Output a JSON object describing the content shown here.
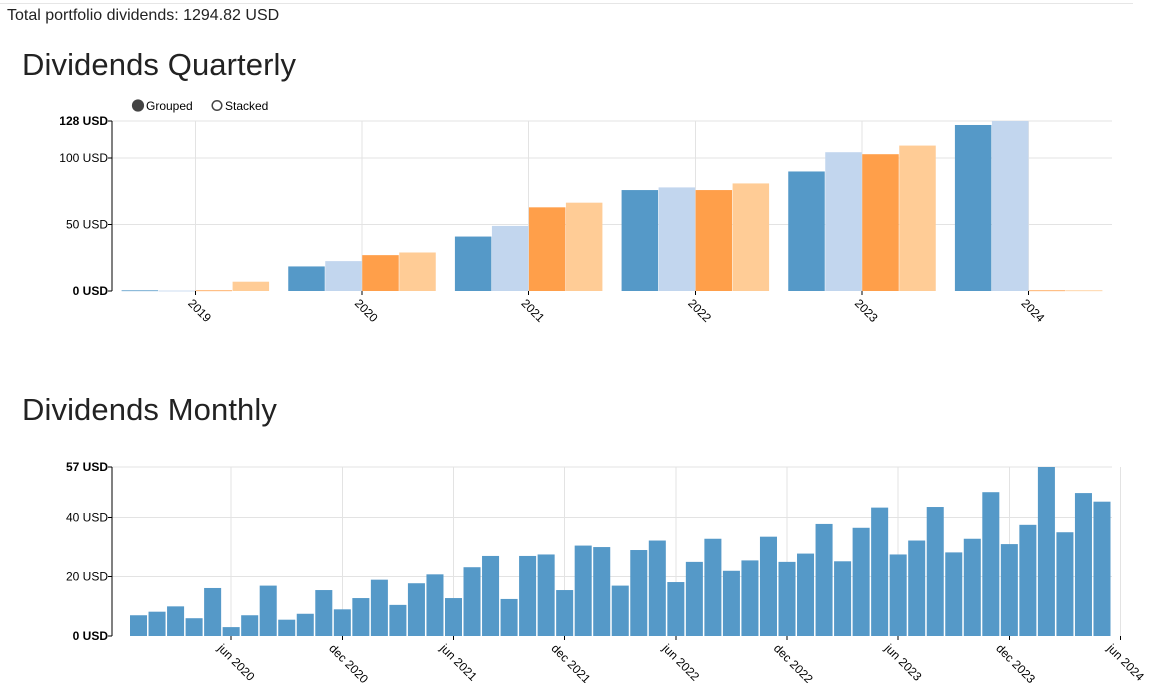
{
  "summary": {
    "total_label": "Total portfolio dividends: 1294.82 USD"
  },
  "quarterly": {
    "title": "Dividends Quarterly",
    "controls": {
      "grouped_label": "Grouped",
      "stacked_label": "Stacked",
      "selected": "grouped"
    }
  },
  "monthly": {
    "title": "Dividends Monthly"
  },
  "chart_data": [
    {
      "type": "bar",
      "mode": "grouped",
      "title": "Dividends Quarterly",
      "categories": [
        "2019",
        "2020",
        "2021",
        "2022",
        "2023",
        "2024"
      ],
      "series": [
        {
          "values": [
            0.5,
            18.5,
            41,
            76,
            90,
            125
          ],
          "color": "#5599c8"
        },
        {
          "values": [
            0.3,
            22.5,
            49,
            78,
            104.5,
            128
          ],
          "color": "#c2d6ee"
        },
        {
          "values": [
            0.5,
            27,
            63,
            76,
            103,
            0.5
          ],
          "color": "#ff9f4a"
        },
        {
          "values": [
            7,
            29,
            66.5,
            81,
            109.5,
            0.5
          ],
          "color": "#ffcc96"
        }
      ],
      "ylim": [
        0,
        128
      ],
      "yticks": [
        {
          "value": 0,
          "label": "0 USD",
          "bold": true
        },
        {
          "value": 50,
          "label": "50 USD",
          "bold": false
        },
        {
          "value": 100,
          "label": "100 USD",
          "bold": false
        },
        {
          "value": 128,
          "label": "128 USD",
          "bold": true
        }
      ],
      "grid": true
    },
    {
      "type": "bar",
      "title": "Dividends Monthly",
      "start_month": "2020-01",
      "values": [
        7,
        8.2,
        10,
        6,
        16.2,
        3,
        7,
        17,
        5.5,
        7.5,
        15.5,
        9,
        12.8,
        19,
        10.5,
        17.8,
        20.8,
        12.8,
        23.2,
        27,
        12.5,
        27,
        27.5,
        15.5,
        30.5,
        30,
        17,
        29,
        32.2,
        18.2,
        25,
        32.8,
        22,
        25.5,
        33.5,
        25,
        27.8,
        37.8,
        25.2,
        36.5,
        43.3,
        27.5,
        32.2,
        43.5,
        28.2,
        32.8,
        48.5,
        31,
        37.5,
        57,
        35,
        48.2,
        45.3
      ],
      "xticks": [
        {
          "month": "2020-06",
          "label": "jun 2020"
        },
        {
          "month": "2020-12",
          "label": "dec 2020"
        },
        {
          "month": "2021-06",
          "label": "jun 2021"
        },
        {
          "month": "2021-12",
          "label": "dec 2021"
        },
        {
          "month": "2022-06",
          "label": "jun 2022"
        },
        {
          "month": "2022-12",
          "label": "dec 2022"
        },
        {
          "month": "2023-06",
          "label": "jun 2023"
        },
        {
          "month": "2023-12",
          "label": "dec 2023"
        },
        {
          "month": "2024-06",
          "label": "jun 2024"
        }
      ],
      "ylim": [
        0,
        57
      ],
      "yticks": [
        {
          "value": 0,
          "label": "0 USD",
          "bold": true
        },
        {
          "value": 20,
          "label": "20 USD",
          "bold": false
        },
        {
          "value": 40,
          "label": "40 USD",
          "bold": false
        },
        {
          "value": 57,
          "label": "57 USD",
          "bold": true
        }
      ],
      "color": "#5599c8",
      "grid": true
    }
  ]
}
